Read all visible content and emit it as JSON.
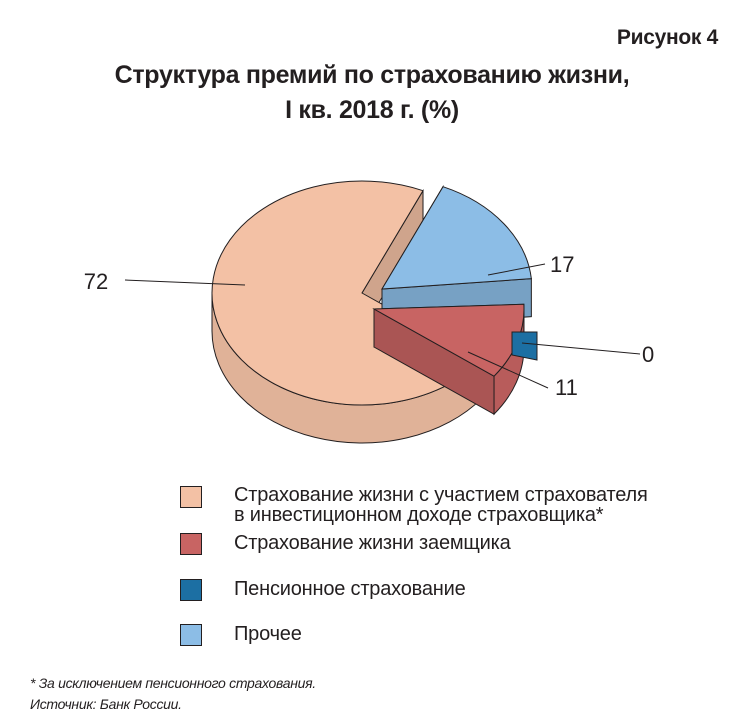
{
  "figure_label": "Рисунок 4",
  "chart_data": {
    "type": "pie",
    "title_lines": [
      "Структура премий по страхованию жизни,",
      "I кв. 2018 г. (%)"
    ],
    "slices": [
      {
        "label": "Страхование жизни с участием страхователя в инвестиционном доходе страховщика*",
        "value": 72,
        "value_label": "72",
        "color": "#f3c1a5"
      },
      {
        "label": "Страхование жизни заемщика",
        "value": 11,
        "value_label": "11",
        "color": "#c86463"
      },
      {
        "label": "Пенсионное страхование",
        "value": 0,
        "value_label": "0",
        "color": "#1c6fa3"
      },
      {
        "label": "Прочее",
        "value": 17,
        "value_label": "17",
        "color": "#8cbde6"
      }
    ]
  },
  "legend": {
    "items": [
      {
        "lines": [
          "Страхование жизни с участием страхователя",
          "в инвестиционном доходе страховщика*"
        ],
        "color": "#f3c1a5"
      },
      {
        "lines": [
          "Страхование жизни заемщика"
        ],
        "color": "#c86463"
      },
      {
        "lines": [
          "Пенсионное страхование"
        ],
        "color": "#1c6fa3"
      },
      {
        "lines": [
          "Прочее"
        ],
        "color": "#8cbde6"
      }
    ]
  },
  "footnotes": {
    "note": "* За исключением пенсионного страхования.",
    "source": "Источник: Банк России."
  }
}
